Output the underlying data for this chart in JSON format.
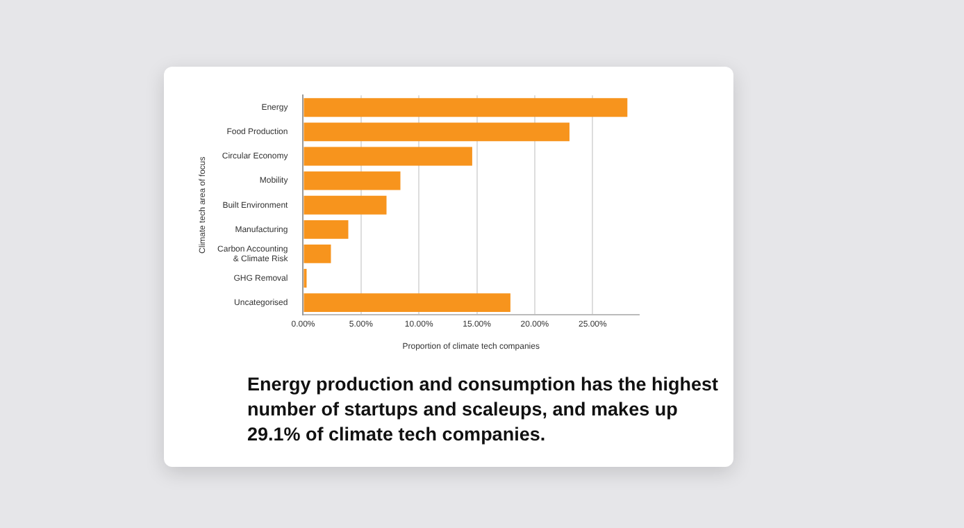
{
  "chart_data": {
    "type": "bar",
    "orientation": "horizontal",
    "categories": [
      "Energy",
      "Food Production",
      "Circular Economy",
      "Mobility",
      "Built Environment",
      "Manufacturing",
      "Carbon Accounting & Climate Risk",
      "GHG Removal",
      "Uncategorised"
    ],
    "values": [
      28.0,
      23.0,
      14.6,
      8.4,
      7.2,
      3.9,
      2.4,
      0.3,
      17.9
    ],
    "color": "#f7941d",
    "xlim": [
      0,
      29
    ],
    "xticks": [
      {
        "value": 0,
        "label": "0.00%"
      },
      {
        "value": 5,
        "label": "5.00%"
      },
      {
        "value": 10,
        "label": "10.00%"
      },
      {
        "value": 15,
        "label": "15.00%"
      },
      {
        "value": 20,
        "label": "20.00%"
      },
      {
        "value": 25,
        "label": "25.00%"
      }
    ],
    "xlabel": "Proportion of climate tech companies",
    "ylabel": "Climate tech area of focus",
    "grid": "x",
    "legend": false,
    "annotations": [
      "Energy production and consumption has the highest number of startups and scaleups, and makes up 29.1% of climate tech companies."
    ]
  }
}
